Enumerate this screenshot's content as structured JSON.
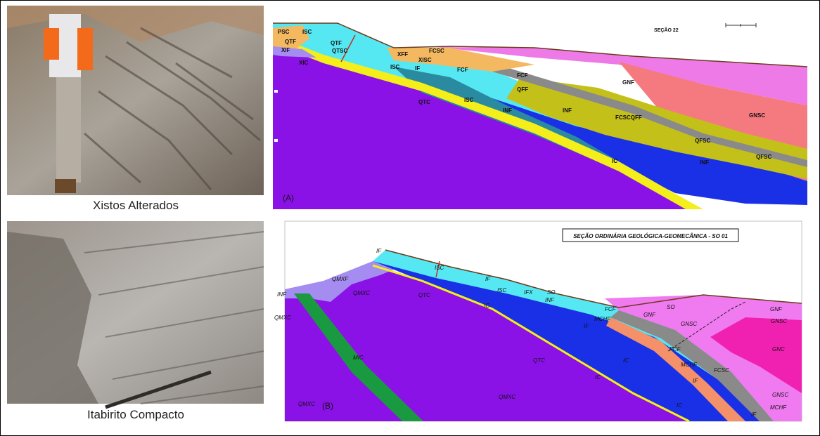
{
  "photos": [
    {
      "caption": "Xistos Alterados"
    },
    {
      "caption": "Itabirito Compacto"
    }
  ],
  "section_a": {
    "label": "(A)",
    "title": "SEÇÃO 22",
    "units": [
      "PSC",
      "ISC",
      "QTF",
      "XIF",
      "XIC",
      "QTSC",
      "QTF",
      "XFF",
      "FCSC",
      "XISC",
      "IF",
      "ISC",
      "FCF",
      "QFF",
      "GNF",
      "GNSC",
      "ISC",
      "INF",
      "INF",
      "FCSCQFF",
      "QFSC",
      "QFSC",
      "IC",
      "INF",
      "QTC",
      "FCF"
    ]
  },
  "section_b": {
    "label": "(B)",
    "title": "SEÇÃO ORDINÁRIA GEOLÓGICA-GEOMECÂNICA - SO 01",
    "units": [
      "IF",
      "ISC",
      "QMXF",
      "QMXC",
      "QTC",
      "IF",
      "ISC",
      "IFX",
      "SO",
      "INF",
      "IC",
      "FCF",
      "MCHF",
      "IF",
      "GNF",
      "GNSC",
      "SO",
      "GNF",
      "GNSC",
      "GNC",
      "FCF",
      "MCHF",
      "FCSC",
      "IF",
      "GNSC",
      "MCHF",
      "IC",
      "MIC",
      "QMXC",
      "QTC",
      "IC",
      "QMXC",
      "IC",
      "INF",
      "QMXC",
      "IF"
    ]
  }
}
